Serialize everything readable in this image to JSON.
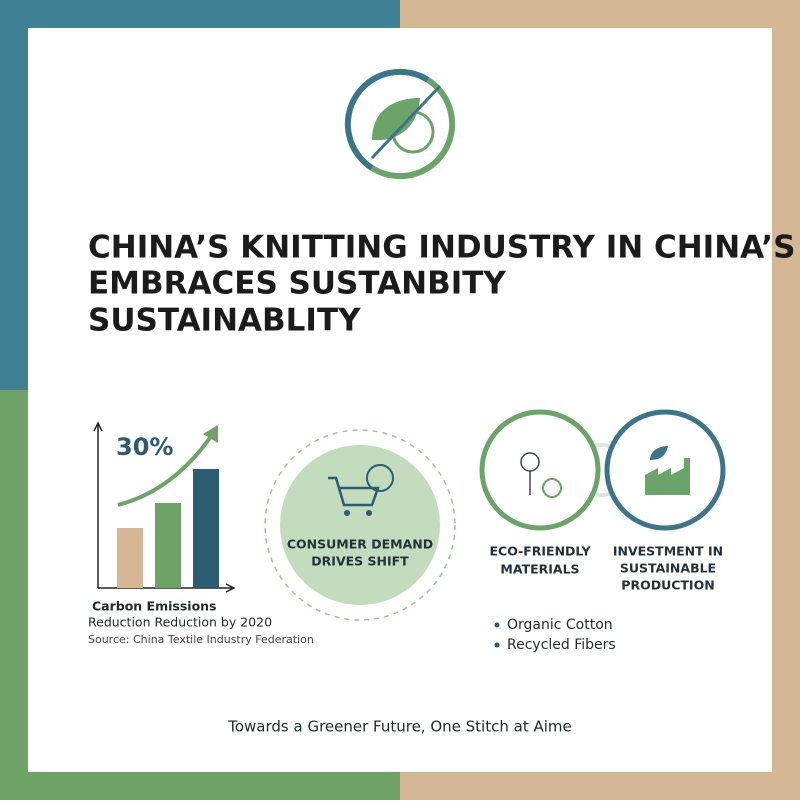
{
  "header": {
    "title_lines": [
      "CHINA’S KNITTING INDUSTRY IN CHINA’S",
      "EMBRACES SUSTANBITY",
      "SUSTAINABLITY"
    ]
  },
  "stat": {
    "value_text": "30%",
    "caption_lines": [
      "Carbon Emissions",
      "Reduction Reduction by 2020"
    ],
    "source": "Source: China Textile Industry Federation"
  },
  "consumer": {
    "lines": [
      "CONSUMER DEMAND",
      "DRIVES SHIFT"
    ]
  },
  "eco": {
    "lines": [
      "ECO-FRIENDLY",
      "MATERIALS"
    ],
    "bullets": [
      "Organic Cotton",
      "Recycled Fibers"
    ]
  },
  "investment": {
    "lines": [
      "INVESTMENT IN",
      "SUSTAINABLE",
      "PRODUCTION"
    ]
  },
  "footer": {
    "text": "Towards a Greener Future, One Stitch at Aime"
  }
}
